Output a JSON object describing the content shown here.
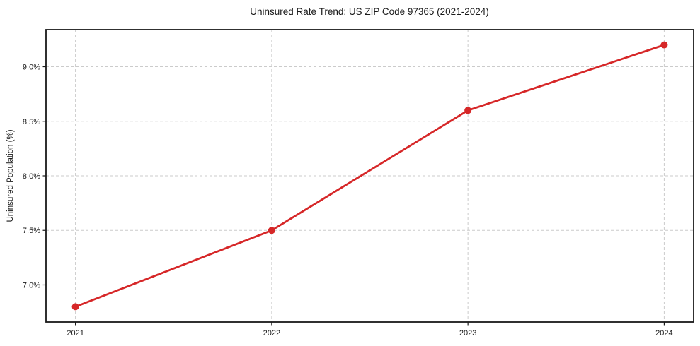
{
  "chart_data": {
    "type": "line",
    "title": "Uninsured Rate Trend: US ZIP Code 97365 (2021-2024)",
    "xlabel": "",
    "ylabel": "Uninsured Population (%)",
    "x": [
      2021,
      2022,
      2023,
      2024
    ],
    "series": [
      {
        "name": "Uninsured Rate",
        "values": [
          6.8,
          7.5,
          8.6,
          9.2
        ]
      }
    ],
    "x_tick_labels": [
      "2021",
      "2022",
      "2023",
      "2024"
    ],
    "y_ticks": [
      7.0,
      7.5,
      8.0,
      8.5,
      9.0
    ],
    "y_tick_labels": [
      "7.0%",
      "7.5%",
      "8.0%",
      "8.5%",
      "9.0%"
    ],
    "xlim": [
      2020.85,
      2024.15
    ],
    "ylim": [
      6.66,
      9.34
    ],
    "grid": "dashed",
    "legend": "none",
    "colors": {
      "line": "#d62728",
      "marker": "#d62728",
      "grid": "#cbcbcb",
      "spine": "#1a1a1a",
      "background": "#ffffff"
    }
  }
}
